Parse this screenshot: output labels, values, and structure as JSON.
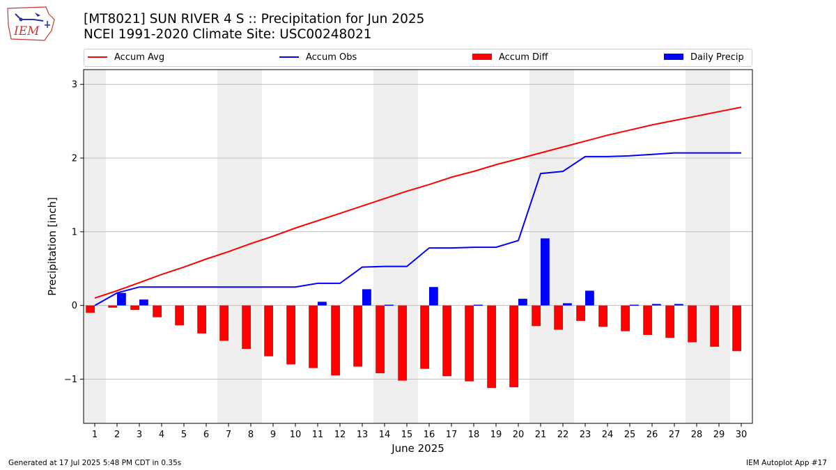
{
  "header": {
    "title_line1": "[MT8021] SUN RIVER 4 S :: Precipitation for Jun 2025",
    "title_line2": "NCEI 1991-2020 Climate Site: USC00248021",
    "logo_text": "IEM"
  },
  "footer": {
    "generated": "Generated at 17 Jul 2025 5:48 PM CDT in 0.35s",
    "app": "IEM Autoplot App #17"
  },
  "legend": [
    {
      "label": "Accum Avg",
      "kind": "line",
      "color": "#ff0000"
    },
    {
      "label": "Accum Obs",
      "kind": "line",
      "color": "#0000ff"
    },
    {
      "label": "Accum Diff",
      "kind": "box",
      "color": "#ff0000"
    },
    {
      "label": "Daily Precip",
      "kind": "box",
      "color": "#0000ff"
    }
  ],
  "chart_data": {
    "type": "bar",
    "xlabel": "June 2025",
    "ylabel": "Precipitation [inch]",
    "x": [
      1,
      2,
      3,
      4,
      5,
      6,
      7,
      8,
      9,
      10,
      11,
      12,
      13,
      14,
      15,
      16,
      17,
      18,
      19,
      20,
      21,
      22,
      23,
      24,
      25,
      26,
      27,
      28,
      29,
      30
    ],
    "xticks": [
      "1",
      "2",
      "3",
      "4",
      "5",
      "6",
      "7",
      "8",
      "9",
      "10",
      "11",
      "12",
      "13",
      "14",
      "15",
      "16",
      "17",
      "18",
      "19",
      "20",
      "21",
      "22",
      "23",
      "24",
      "25",
      "26",
      "27",
      "28",
      "29",
      "30"
    ],
    "ylim": [
      -1.6,
      3.2
    ],
    "yticks": [
      -1,
      0,
      1,
      2,
      3
    ],
    "ytick_labels": [
      "−1",
      "0",
      "1",
      "2",
      "3"
    ],
    "grid": "y",
    "weekend_shading": [
      [
        1,
        1
      ],
      [
        7,
        8
      ],
      [
        14,
        15
      ],
      [
        21,
        22
      ],
      [
        28,
        29
      ]
    ],
    "series": [
      {
        "name": "Accum Avg",
        "type": "line",
        "color": "#ff0000",
        "values": [
          0.1,
          0.2,
          0.31,
          0.42,
          0.52,
          0.63,
          0.73,
          0.84,
          0.94,
          1.05,
          1.15,
          1.25,
          1.35,
          1.45,
          1.55,
          1.64,
          1.74,
          1.82,
          1.91,
          1.99,
          2.07,
          2.15,
          2.23,
          2.31,
          2.38,
          2.45,
          2.51,
          2.57,
          2.63,
          2.69
        ]
      },
      {
        "name": "Accum Obs",
        "type": "line",
        "color": "#0000ff",
        "values": [
          0.0,
          0.17,
          0.25,
          0.25,
          0.25,
          0.25,
          0.25,
          0.25,
          0.25,
          0.25,
          0.3,
          0.3,
          0.52,
          0.53,
          0.53,
          0.78,
          0.78,
          0.79,
          0.79,
          0.88,
          1.79,
          1.82,
          2.02,
          2.02,
          2.03,
          2.05,
          2.07,
          2.07,
          2.07,
          2.07
        ]
      },
      {
        "name": "Accum Diff",
        "type": "bar",
        "color": "#ff0000",
        "values": [
          -0.1,
          -0.03,
          -0.06,
          -0.16,
          -0.27,
          -0.38,
          -0.48,
          -0.59,
          -0.69,
          -0.8,
          -0.85,
          -0.95,
          -0.83,
          -0.92,
          -1.02,
          -0.86,
          -0.96,
          -1.03,
          -1.12,
          -1.11,
          -0.28,
          -0.33,
          -0.21,
          -0.29,
          -0.35,
          -0.4,
          -0.44,
          -0.5,
          -0.56,
          -0.62
        ]
      },
      {
        "name": "Daily Precip",
        "type": "bar",
        "color": "#0000ff",
        "values": [
          0.0,
          0.17,
          0.08,
          0.0,
          0.0,
          0.0,
          0.0,
          0.0,
          0.0,
          0.0,
          0.05,
          0.0,
          0.22,
          0.01,
          0.0,
          0.25,
          0.0,
          0.01,
          0.0,
          0.09,
          0.91,
          0.03,
          0.2,
          0.0,
          0.01,
          0.02,
          0.02,
          0.0,
          0.0,
          0.0
        ]
      }
    ]
  }
}
